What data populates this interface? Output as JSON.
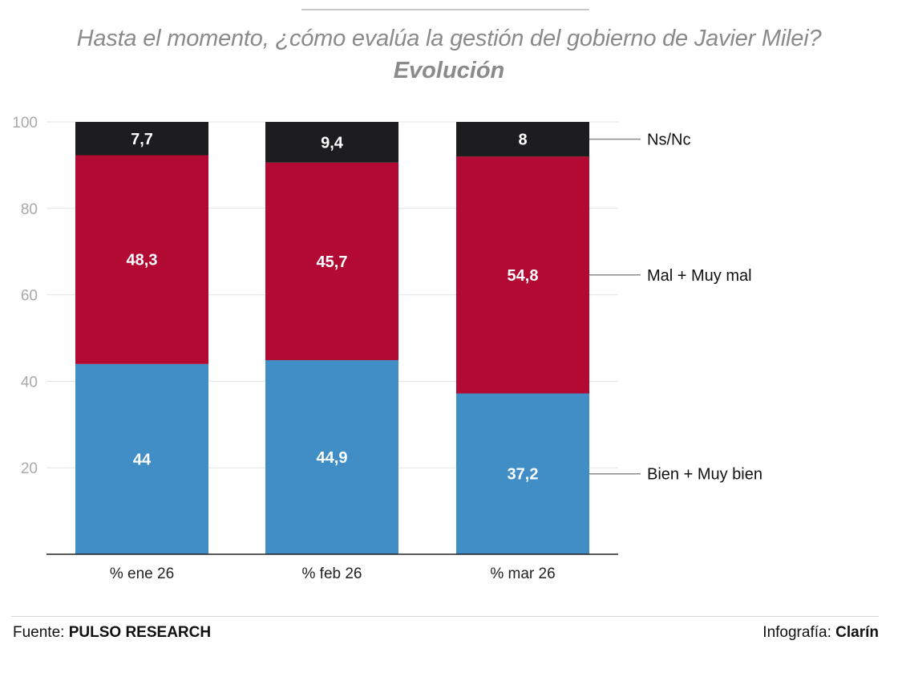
{
  "header": {
    "title": "Hasta el momento, ¿cómo evalúa la gestión del gobierno de Javier Milei?",
    "subtitle": "Evolución"
  },
  "footer": {
    "source_label": "Fuente:",
    "source_name": "PULSO RESEARCH",
    "credit_label": "Infografía:",
    "credit_name": "Clarín"
  },
  "chart_data": {
    "type": "bar",
    "stacked": true,
    "categories": [
      "% ene 26",
      "% feb 26",
      "% mar 26"
    ],
    "series": [
      {
        "name": "Bien + Muy bien",
        "values": [
          44,
          44.9,
          37.2
        ],
        "labels": [
          "44",
          "44,9",
          "37,2"
        ],
        "color": "#418dc6"
      },
      {
        "name": "Mal + Muy mal",
        "values": [
          48.3,
          45.7,
          54.8
        ],
        "labels": [
          "48,3",
          "45,7",
          "54,8"
        ],
        "color": "#b20a33"
      },
      {
        "name": "Ns/Nc",
        "values": [
          7.7,
          9.4,
          8
        ],
        "labels": [
          "7,7",
          "9,4",
          "8"
        ],
        "color": "#1d1d1f"
      }
    ],
    "ylim": [
      0,
      100
    ],
    "yticks": [
      20,
      40,
      60,
      80,
      100
    ],
    "grid": true,
    "legend": "right, labels aligned to last bar segments"
  }
}
